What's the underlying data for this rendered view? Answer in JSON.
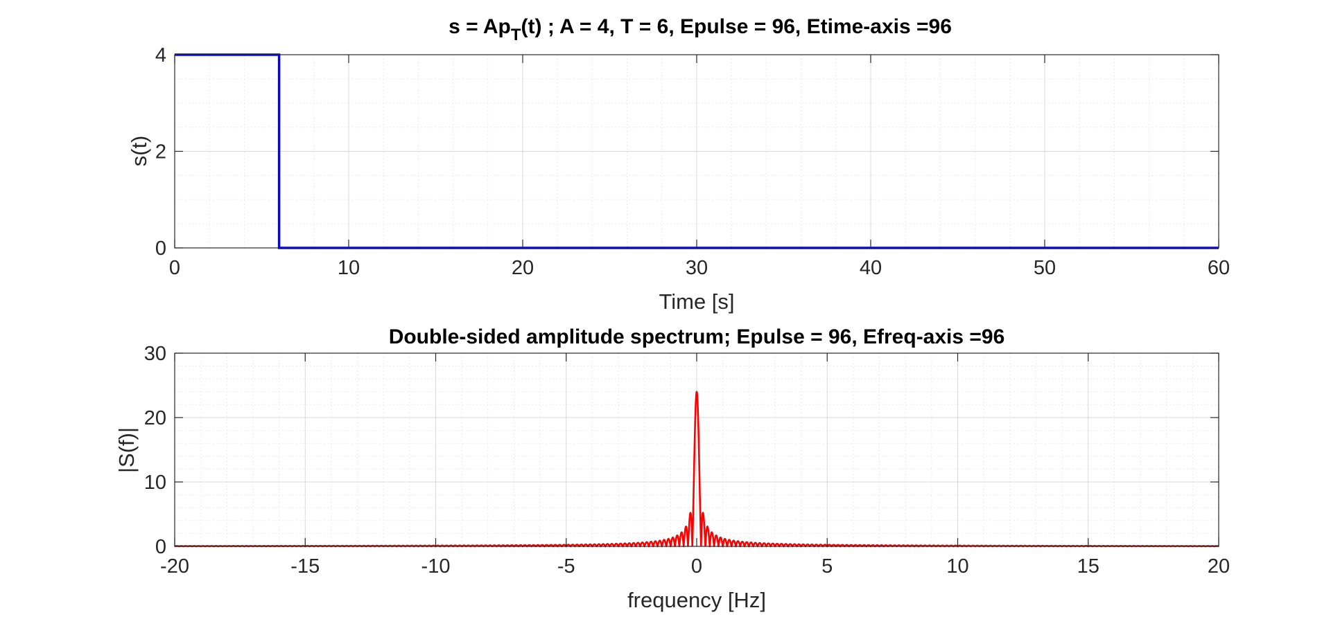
{
  "chart_data": [
    {
      "type": "line",
      "title_prefix": "s = Ap",
      "title_subscript": "T",
      "title_suffix": "(t) ; A = 4, T = 6, Epulse = 96, Etime-axis =96",
      "xlabel": "Time [s]",
      "ylabel": "s(t)",
      "xlim": [
        0,
        60
      ],
      "ylim": [
        0,
        4
      ],
      "xticks": [
        0,
        10,
        20,
        30,
        40,
        50,
        60
      ],
      "yticks": [
        0,
        2,
        4
      ],
      "grid": true,
      "minor_grid": true,
      "series": [
        {
          "color": "#0000ff",
          "x": [
            0,
            6,
            6,
            60
          ],
          "y": [
            4,
            4,
            0,
            0
          ]
        }
      ],
      "parameters": {
        "A": 4,
        "T": 6
      }
    },
    {
      "type": "line",
      "title": "Double-sided amplitude spectrum; Epulse = 96, Efreq-axis =96",
      "xlabel": "frequency [Hz]",
      "ylabel": "|S(f)|",
      "xlim": [
        -20,
        20
      ],
      "ylim": [
        0,
        30
      ],
      "xticks": [
        -20,
        -15,
        -10,
        -5,
        0,
        5,
        10,
        15,
        20
      ],
      "yticks": [
        0,
        10,
        20,
        30
      ],
      "grid": true,
      "minor_grid": true,
      "series": [
        {
          "color": "#ff0000",
          "function": "|A*T*sinc(f*T)|",
          "peak": {
            "x": 0,
            "y": 24
          },
          "first_sidelobe": {
            "x": 0.25,
            "y": 5.3
          }
        }
      ]
    }
  ]
}
